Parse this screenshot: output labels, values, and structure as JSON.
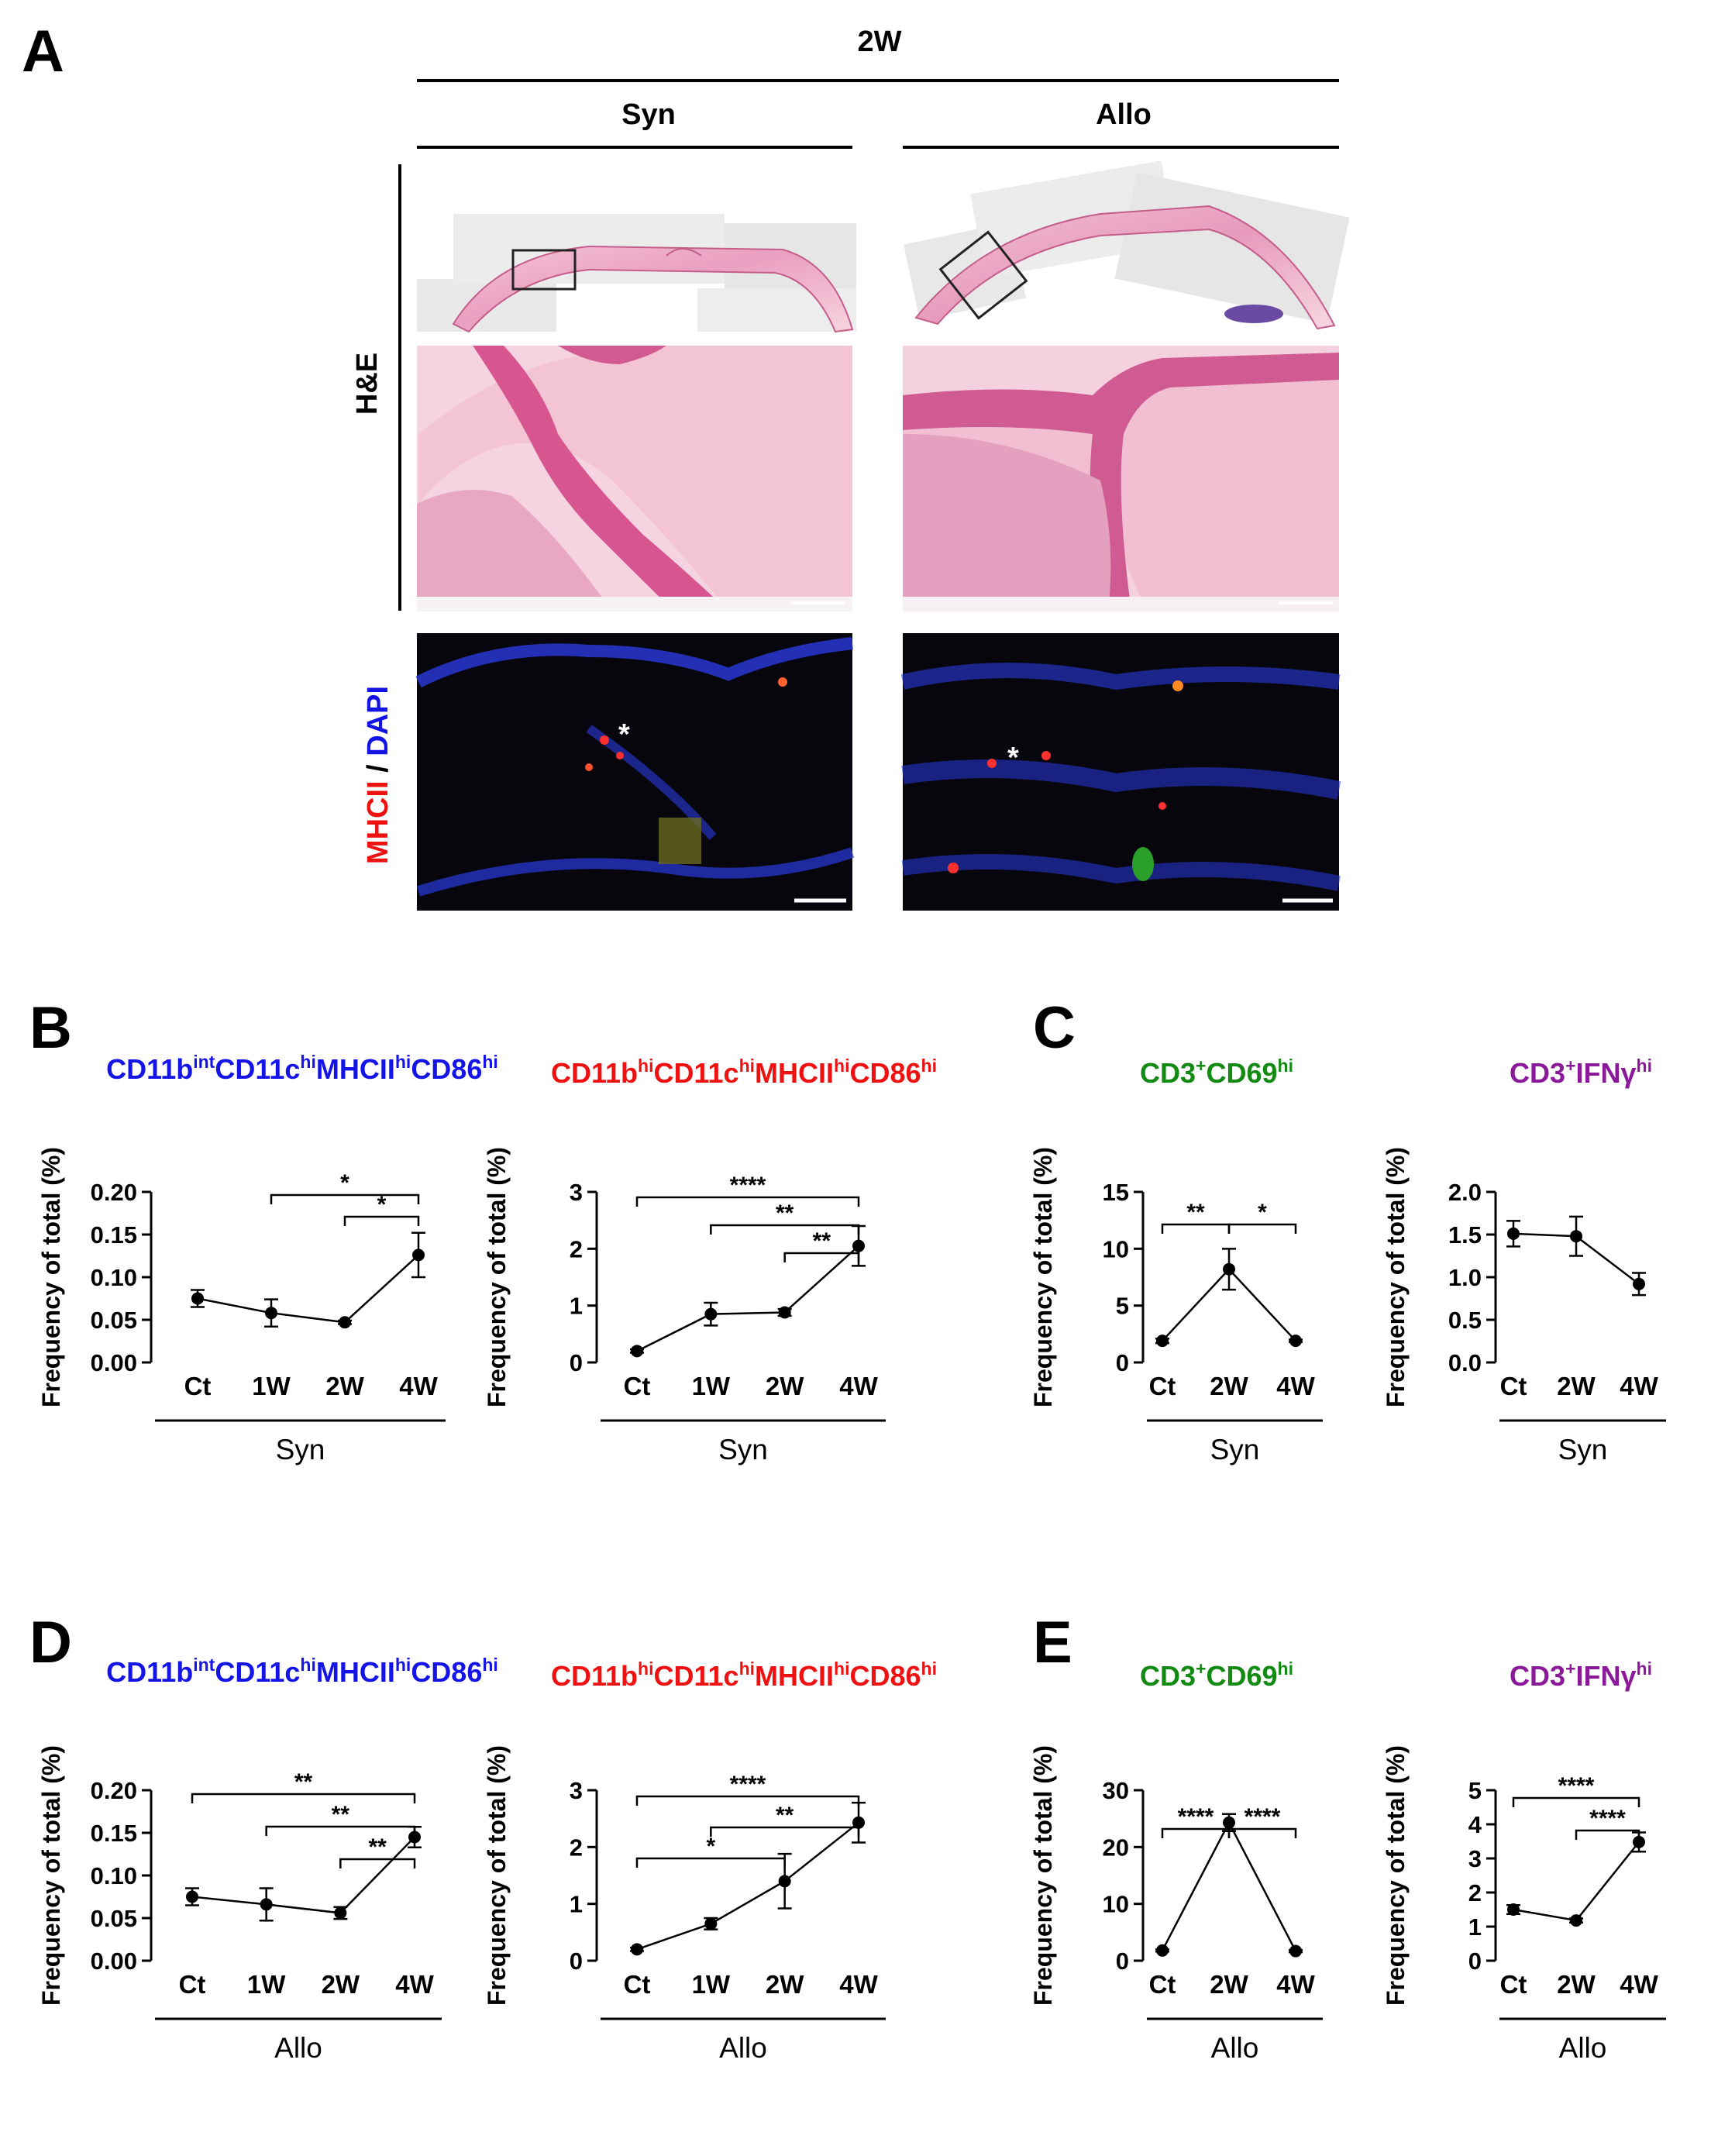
{
  "panel_a": {
    "letter": "A",
    "time_label": "2W",
    "col_syn": "Syn",
    "col_allo": "Allo",
    "row_he": "H&E",
    "row_if_marker1": "MHCII",
    "row_if_sep": " / ",
    "row_if_marker2": "DAPI",
    "asterisk": "*",
    "colors": {
      "he_pink": "#efb8cc",
      "he_deep": "#d44d8c",
      "if_bg": "#06060c",
      "dapi": "#2a3be0",
      "mhc": "#ff3030"
    }
  },
  "letters": {
    "B": "B",
    "C": "C",
    "D": "D",
    "E": "E"
  },
  "colors": {
    "blue": "#1414e6",
    "red": "#ee1111",
    "green": "#138a13",
    "purple": "#8b1a9b"
  },
  "chart_data": [
    {
      "id": "B1",
      "type": "line",
      "color_key": "blue",
      "title_parts": [
        [
          "CD11b",
          ""
        ],
        [
          "int",
          "sup"
        ],
        [
          "CD11c",
          ""
        ],
        [
          "hi",
          "sup"
        ],
        [
          "MHCII",
          ""
        ],
        [
          "hi",
          "sup"
        ],
        [
          "CD86",
          ""
        ],
        [
          "hi",
          "sup"
        ]
      ],
      "ylabel": "Frequency of total (%)",
      "categories": [
        "Ct",
        "1W",
        "2W",
        "4W"
      ],
      "group_label": "Syn",
      "ylim": [
        0,
        0.2
      ],
      "yticks": [
        "0.00",
        "0.05",
        "0.10",
        "0.15",
        "0.20"
      ],
      "values": [
        0.075,
        0.058,
        0.047,
        0.126
      ],
      "errors": [
        0.01,
        0.016,
        0.002,
        0.026
      ],
      "significance": [
        {
          "from": 1,
          "to": 3,
          "label": "*"
        },
        {
          "from": 2,
          "to": 3,
          "label": "*"
        }
      ]
    },
    {
      "id": "B2",
      "type": "line",
      "color_key": "red",
      "title_parts": [
        [
          "CD11b",
          ""
        ],
        [
          "hi",
          "sup"
        ],
        [
          "CD11c",
          ""
        ],
        [
          "hi",
          "sup"
        ],
        [
          "MHCII",
          ""
        ],
        [
          "hi",
          "sup"
        ],
        [
          "CD86",
          ""
        ],
        [
          "hi",
          "sup"
        ]
      ],
      "ylabel": "Frequency of total (%)",
      "categories": [
        "Ct",
        "1W",
        "2W",
        "4W"
      ],
      "group_label": "Syn",
      "ylim": [
        0,
        3
      ],
      "yticks": [
        "0",
        "1",
        "2",
        "3"
      ],
      "values": [
        0.2,
        0.85,
        0.88,
        2.05
      ],
      "errors": [
        0.03,
        0.2,
        0.06,
        0.35
      ],
      "significance": [
        {
          "from": 0,
          "to": 3,
          "label": "****"
        },
        {
          "from": 1,
          "to": 3,
          "label": "**"
        },
        {
          "from": 2,
          "to": 3,
          "label": "**"
        }
      ]
    },
    {
      "id": "C1",
      "type": "line",
      "color_key": "green",
      "title_parts": [
        [
          "CD3",
          ""
        ],
        [
          "+",
          "sup"
        ],
        [
          "CD69",
          ""
        ],
        [
          "hi",
          "sup"
        ]
      ],
      "ylabel": "Frequency of total (%)",
      "categories": [
        "Ct",
        "2W",
        "4W"
      ],
      "group_label": "Syn",
      "ylim": [
        0,
        15
      ],
      "yticks": [
        "0",
        "5",
        "10",
        "15"
      ],
      "values": [
        1.9,
        8.2,
        1.9
      ],
      "errors": [
        0.2,
        1.8,
        0.1
      ],
      "significance": [
        {
          "from": 0,
          "to": 1,
          "label": "**"
        },
        {
          "from": 1,
          "to": 2,
          "label": "*"
        }
      ]
    },
    {
      "id": "C2",
      "type": "line",
      "color_key": "purple",
      "title_parts": [
        [
          "CD3",
          ""
        ],
        [
          "+",
          "sup"
        ],
        [
          "IFNγ",
          ""
        ],
        [
          "hi",
          "sup"
        ]
      ],
      "ylabel": "Frequency of total (%)",
      "categories": [
        "Ct",
        "2W",
        "4W"
      ],
      "group_label": "Syn",
      "ylim": [
        0,
        2
      ],
      "yticks": [
        "0.0",
        "0.5",
        "1.0",
        "1.5",
        "2.0"
      ],
      "values": [
        1.51,
        1.48,
        0.92
      ],
      "errors": [
        0.15,
        0.23,
        0.13
      ],
      "significance": []
    },
    {
      "id": "D1",
      "type": "line",
      "color_key": "blue",
      "title_parts": [
        [
          "CD11b",
          ""
        ],
        [
          "int",
          "sup"
        ],
        [
          "CD11c",
          ""
        ],
        [
          "hi",
          "sup"
        ],
        [
          "MHCII",
          ""
        ],
        [
          "hi",
          "sup"
        ],
        [
          "CD86",
          ""
        ],
        [
          "hi",
          "sup"
        ]
      ],
      "ylabel": "Frequency of total (%)",
      "categories": [
        "Ct",
        "1W",
        "2W",
        "4W"
      ],
      "group_label": "Allo",
      "ylim": [
        0,
        0.2
      ],
      "yticks": [
        "0.00",
        "0.05",
        "0.10",
        "0.15",
        "0.20"
      ],
      "values": [
        0.075,
        0.066,
        0.056,
        0.145
      ],
      "errors": [
        0.01,
        0.019,
        0.007,
        0.012
      ],
      "significance": [
        {
          "from": 0,
          "to": 3,
          "label": "**"
        },
        {
          "from": 1,
          "to": 3,
          "label": "**"
        },
        {
          "from": 2,
          "to": 3,
          "label": "**"
        }
      ]
    },
    {
      "id": "D2",
      "type": "line",
      "color_key": "red",
      "title_parts": [
        [
          "CD11b",
          ""
        ],
        [
          "hi",
          "sup"
        ],
        [
          "CD11c",
          ""
        ],
        [
          "hi",
          "sup"
        ],
        [
          "MHCII",
          ""
        ],
        [
          "hi",
          "sup"
        ],
        [
          "CD86",
          ""
        ],
        [
          "hi",
          "sup"
        ]
      ],
      "ylabel": "Frequency of total (%)",
      "categories": [
        "Ct",
        "1W",
        "2W",
        "4W"
      ],
      "group_label": "Allo",
      "ylim": [
        0,
        3
      ],
      "yticks": [
        "0",
        "1",
        "2",
        "3"
      ],
      "values": [
        0.2,
        0.65,
        1.4,
        2.43
      ],
      "errors": [
        0.03,
        0.1,
        0.48,
        0.35
      ],
      "significance": [
        {
          "from": 0,
          "to": 3,
          "label": "****"
        },
        {
          "from": 1,
          "to": 3,
          "label": "**"
        },
        {
          "from": 0,
          "to": 2,
          "label": "*"
        }
      ]
    },
    {
      "id": "E1",
      "type": "line",
      "color_key": "green",
      "title_parts": [
        [
          "CD3",
          ""
        ],
        [
          "+",
          "sup"
        ],
        [
          "CD69",
          ""
        ],
        [
          "hi",
          "sup"
        ]
      ],
      "ylabel": "Frequency of total (%)",
      "categories": [
        "Ct",
        "2W",
        "4W"
      ],
      "group_label": "Allo",
      "ylim": [
        0,
        30
      ],
      "yticks": [
        "0",
        "10",
        "20",
        "30"
      ],
      "values": [
        1.8,
        24.3,
        1.7
      ],
      "errors": [
        0.2,
        1.5,
        0.2
      ],
      "significance": [
        {
          "from": 0,
          "to": 1,
          "label": "****"
        },
        {
          "from": 1,
          "to": 2,
          "label": "****"
        }
      ]
    },
    {
      "id": "E2",
      "type": "line",
      "color_key": "purple",
      "title_parts": [
        [
          "CD3",
          ""
        ],
        [
          "+",
          "sup"
        ],
        [
          "IFNγ",
          ""
        ],
        [
          "hi",
          "sup"
        ]
      ],
      "ylabel": "Frequency of total (%)",
      "categories": [
        "Ct",
        "2W",
        "4W"
      ],
      "group_label": "Allo",
      "ylim": [
        0,
        5
      ],
      "yticks": [
        "0",
        "1",
        "2",
        "3",
        "4",
        "5"
      ],
      "values": [
        1.5,
        1.18,
        3.48
      ],
      "errors": [
        0.13,
        0.06,
        0.28
      ],
      "significance": [
        {
          "from": 0,
          "to": 2,
          "label": "****"
        },
        {
          "from": 1,
          "to": 2,
          "label": "****"
        }
      ]
    }
  ]
}
